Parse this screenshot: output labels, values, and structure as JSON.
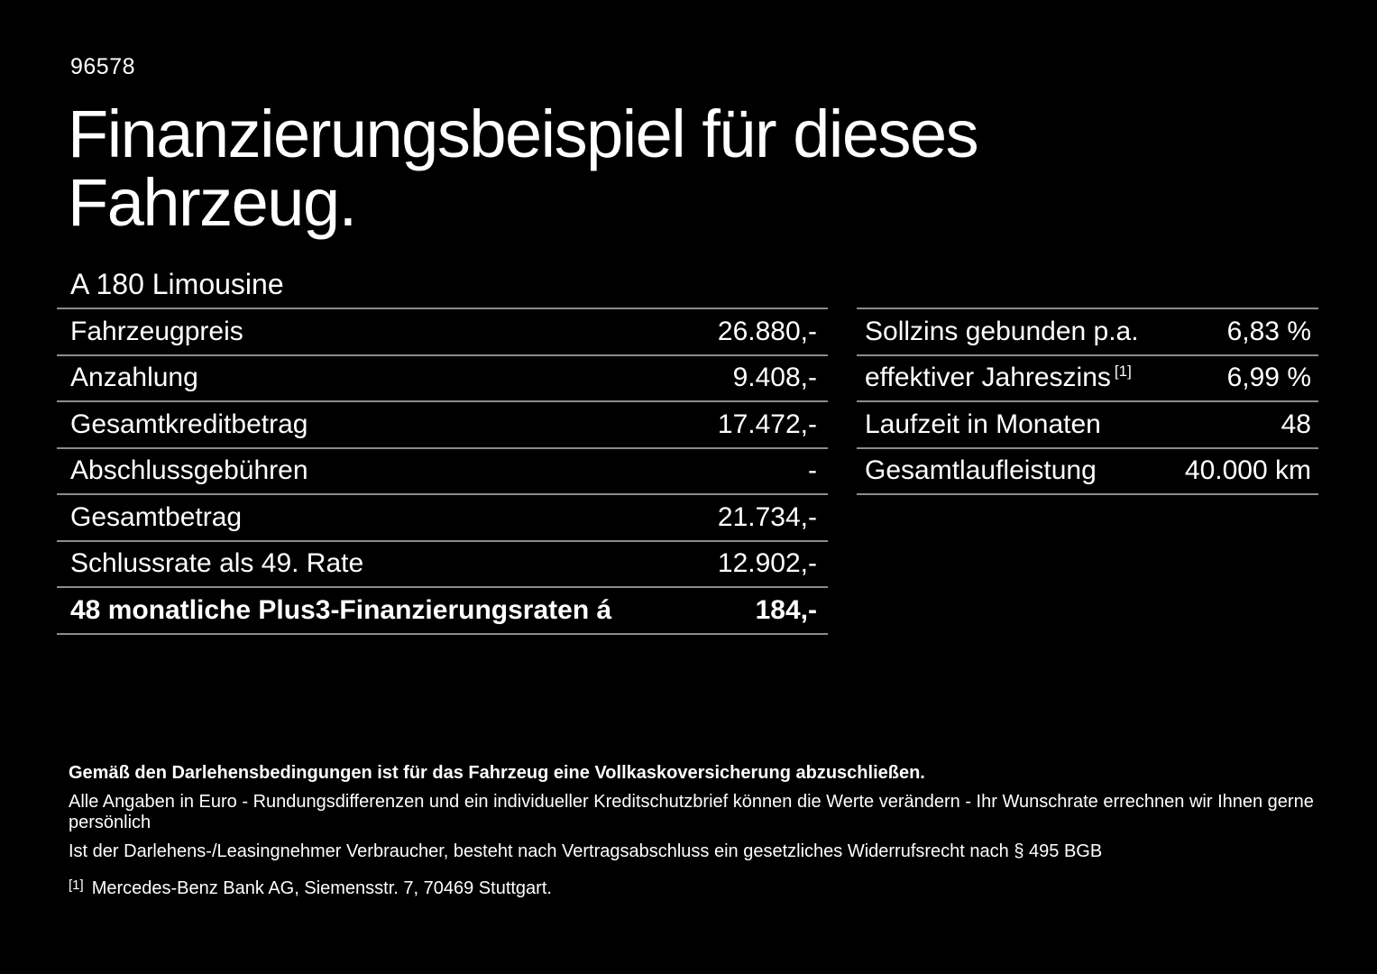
{
  "page": {
    "background_color": "#000000",
    "text_color": "#ffffff",
    "divider_color": "#8c8c8c"
  },
  "header": {
    "doc_number": "96578",
    "title": "Finanzierungsbeispiel für dieses Fahrzeug.",
    "title_lines": [
      "Finanzierungsbeispiel für dieses",
      "Fahrzeug."
    ],
    "vehicle_model": "A 180 Limousine"
  },
  "financing_table": {
    "rows": [
      {
        "label": "Fahrzeugpreis",
        "value": "26.880,-",
        "bold": false
      },
      {
        "label": "Anzahlung",
        "value": "9.408,-",
        "bold": false
      },
      {
        "label": "Gesamtkreditbetrag",
        "value": "17.472,-",
        "bold": false
      },
      {
        "label": "Abschlussgebühren",
        "value": "-",
        "bold": false
      },
      {
        "label": "Gesamtbetrag",
        "value": "21.734,-",
        "bold": false
      },
      {
        "label": "Schlussrate als 49. Rate",
        "value": "12.902,-",
        "bold": false
      },
      {
        "label": "48 monatliche Plus3-Finanzierungsraten á",
        "value": "184,-",
        "bold": true
      }
    ]
  },
  "conditions_table": {
    "rows": [
      {
        "label": "Sollzins gebunden p.a.",
        "sup": "",
        "value": "6,83 %"
      },
      {
        "label": "effektiver Jahreszins",
        "sup": "[1]",
        "value": "6,99 %"
      },
      {
        "label": "Laufzeit in Monaten",
        "sup": "",
        "value": "48"
      },
      {
        "label": "Gesamtlaufleistung",
        "sup": "",
        "value": "40.000 km"
      }
    ]
  },
  "footnotes": {
    "insurance_note": "Gemäß den Darlehensbedingungen ist für das Fahrzeug eine Vollkaskoversicherung abzuschließen.",
    "rounding_note": "Alle Angaben in Euro - Rundungsdifferenzen und ein individueller Kreditschutzbrief können die Werte verändern - Ihr Wunschrate errechnen wir Ihnen gerne persönlich",
    "withdrawal_note": "Ist der Darlehens-/Leasingnehmer Verbraucher, besteht nach Vertragsabschluss ein gesetzliches Widerrufsrecht nach § 495 BGB",
    "bank_ref_marker": "[1]",
    "bank_note": "Mercedes-Benz Bank AG, Siemensstr. 7, 70469 Stuttgart."
  }
}
